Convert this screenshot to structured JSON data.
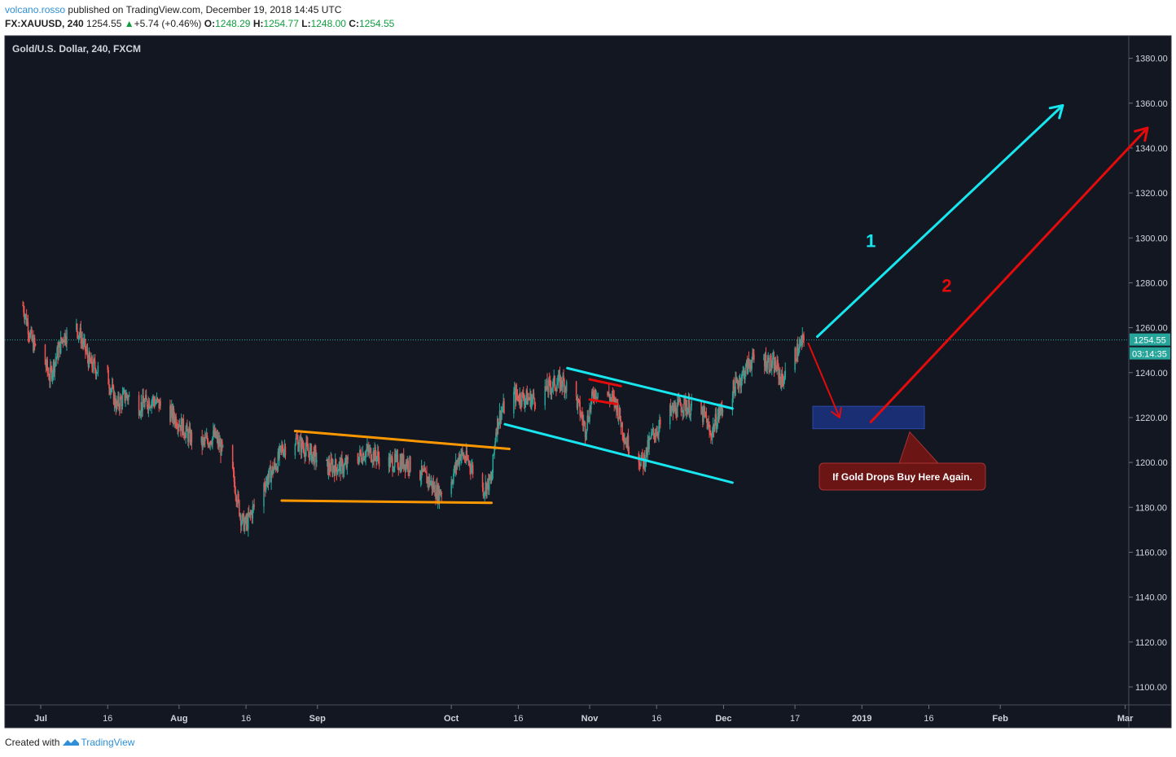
{
  "header": {
    "author": "volcano.rosso",
    "published_text": "published on TradingView.com, December 19, 2018 14:45 UTC",
    "symbol": "FX:XAUUSD, 240",
    "last": "1254.55",
    "change_arrow": "▲",
    "change": "+5.74 (+0.46%)",
    "o_label": "O:",
    "o_val": "1248.29",
    "h_label": "H:",
    "h_val": "1254.77",
    "l_label": "L:",
    "l_val": "1248.00",
    "c_label": "C:",
    "c_val": "1254.55"
  },
  "footer": {
    "created_with": "Created with",
    "brand": "TradingView"
  },
  "colors": {
    "background": "#131722",
    "up_candle": "#26a69a",
    "down_candle": "#ef5350",
    "orange_line": "#ff9800",
    "cyan": "#18e6ef",
    "red": "#e30b0b",
    "zone": "#1c3282",
    "callout": "#6b1515"
  },
  "chart_data": {
    "type": "candlestick",
    "title": "Gold/U.S. Dollar, 240, FXCM",
    "ylim": [
      1092,
      1390
    ],
    "y_ticks": [
      "1100.00",
      "1120.00",
      "1140.00",
      "1160.00",
      "1180.00",
      "1200.00",
      "1220.00",
      "1240.00",
      "1260.00",
      "1280.00",
      "1300.00",
      "1320.00",
      "1340.00",
      "1360.00",
      "1380.00"
    ],
    "x_ticks": [
      "Jul",
      "16",
      "Aug",
      "16",
      "Sep",
      "Oct",
      "16",
      "Nov",
      "16",
      "Dec",
      "17",
      "2019",
      "16",
      "Feb",
      "Mar"
    ],
    "x_tick_dates": [
      "2018-07-01",
      "2018-07-16",
      "2018-08-01",
      "2018-08-16",
      "2018-09-01",
      "2018-10-01",
      "2018-10-16",
      "2018-11-01",
      "2018-11-16",
      "2018-12-01",
      "2018-12-17",
      "2019-01-01",
      "2019-01-16",
      "2019-02-01",
      "2019-03-01"
    ],
    "close_path": [
      {
        "date": "2018-06-27",
        "close": 1270
      },
      {
        "date": "2018-06-29",
        "close": 1254
      },
      {
        "date": "2018-07-02",
        "close": 1244
      },
      {
        "date": "2018-07-03",
        "close": 1238
      },
      {
        "date": "2018-07-06",
        "close": 1256
      },
      {
        "date": "2018-07-09",
        "close": 1260
      },
      {
        "date": "2018-07-10",
        "close": 1256
      },
      {
        "date": "2018-07-12",
        "close": 1244
      },
      {
        "date": "2018-07-16",
        "close": 1238
      },
      {
        "date": "2018-07-18",
        "close": 1225
      },
      {
        "date": "2018-07-20",
        "close": 1230
      },
      {
        "date": "2018-07-23",
        "close": 1225
      },
      {
        "date": "2018-07-26",
        "close": 1228
      },
      {
        "date": "2018-07-30",
        "close": 1222
      },
      {
        "date": "2018-08-01",
        "close": 1218
      },
      {
        "date": "2018-08-03",
        "close": 1212
      },
      {
        "date": "2018-08-06",
        "close": 1208
      },
      {
        "date": "2018-08-09",
        "close": 1212
      },
      {
        "date": "2018-08-13",
        "close": 1195
      },
      {
        "date": "2018-08-15",
        "close": 1174
      },
      {
        "date": "2018-08-16",
        "close": 1172
      },
      {
        "date": "2018-08-20",
        "close": 1190
      },
      {
        "date": "2018-08-23",
        "close": 1200
      },
      {
        "date": "2018-08-24",
        "close": 1206
      },
      {
        "date": "2018-08-27",
        "close": 1210
      },
      {
        "date": "2018-09-03",
        "close": 1198
      },
      {
        "date": "2018-09-07",
        "close": 1198
      },
      {
        "date": "2018-09-12",
        "close": 1205
      },
      {
        "date": "2018-09-17",
        "close": 1200
      },
      {
        "date": "2018-09-21",
        "close": 1200
      },
      {
        "date": "2018-09-26",
        "close": 1192
      },
      {
        "date": "2018-09-28",
        "close": 1186
      },
      {
        "date": "2018-10-01",
        "close": 1192
      },
      {
        "date": "2018-10-03",
        "close": 1204
      },
      {
        "date": "2018-10-05",
        "close": 1200
      },
      {
        "date": "2018-10-08",
        "close": 1188
      },
      {
        "date": "2018-10-10",
        "close": 1192
      },
      {
        "date": "2018-10-11",
        "close": 1215
      },
      {
        "date": "2018-10-12",
        "close": 1222
      },
      {
        "date": "2018-10-15",
        "close": 1230
      },
      {
        "date": "2018-10-19",
        "close": 1228
      },
      {
        "date": "2018-10-24",
        "close": 1235
      },
      {
        "date": "2018-10-26",
        "close": 1236
      },
      {
        "date": "2018-10-29",
        "close": 1228
      },
      {
        "date": "2018-10-31",
        "close": 1215
      },
      {
        "date": "2018-11-02",
        "close": 1232
      },
      {
        "date": "2018-11-05",
        "close": 1230
      },
      {
        "date": "2018-11-07",
        "close": 1226
      },
      {
        "date": "2018-11-09",
        "close": 1210
      },
      {
        "date": "2018-11-12",
        "close": 1202
      },
      {
        "date": "2018-11-13",
        "close": 1200
      },
      {
        "date": "2018-11-15",
        "close": 1212
      },
      {
        "date": "2018-11-19",
        "close": 1222
      },
      {
        "date": "2018-11-22",
        "close": 1226
      },
      {
        "date": "2018-11-27",
        "close": 1220
      },
      {
        "date": "2018-11-28",
        "close": 1212
      },
      {
        "date": "2018-11-30",
        "close": 1222
      },
      {
        "date": "2018-12-03",
        "close": 1232
      },
      {
        "date": "2018-12-05",
        "close": 1238
      },
      {
        "date": "2018-12-07",
        "close": 1245
      },
      {
        "date": "2018-12-10",
        "close": 1246
      },
      {
        "date": "2018-12-13",
        "close": 1242
      },
      {
        "date": "2018-12-14",
        "close": 1236
      },
      {
        "date": "2018-12-17",
        "close": 1248
      },
      {
        "date": "2018-12-19",
        "close": 1254.55
      }
    ],
    "last_price_label": "1254.55",
    "countdown_label": "03:14:35",
    "drawings": {
      "orange_top": [
        {
          "date": "2018-08-27",
          "y": 1214
        },
        {
          "date": "2018-10-14",
          "y": 1206
        }
      ],
      "orange_bottom": [
        {
          "date": "2018-08-24",
          "y": 1183
        },
        {
          "date": "2018-10-10",
          "y": 1182
        }
      ],
      "cyan_top": [
        {
          "date": "2018-10-27",
          "y": 1242
        },
        {
          "date": "2018-12-03",
          "y": 1224
        }
      ],
      "cyan_bottom": [
        {
          "date": "2018-10-13",
          "y": 1217
        },
        {
          "date": "2018-12-03",
          "y": 1191
        }
      ],
      "red_flag_top": [
        {
          "date": "2018-11-01",
          "y": 1237
        },
        {
          "date": "2018-11-08",
          "y": 1234
        }
      ],
      "red_flag_bottom": [
        {
          "date": "2018-11-01",
          "y": 1228
        },
        {
          "date": "2018-11-07",
          "y": 1226
        }
      ],
      "red_down_arrow": [
        {
          "date": "2018-12-20",
          "y": 1253
        },
        {
          "date": "2018-12-27",
          "y": 1220
        }
      ],
      "zone": {
        "date_from": "2018-12-21",
        "date_to": "2019-01-15",
        "y_top": 1225,
        "y_bottom": 1215
      },
      "cyan_arrow": [
        {
          "date": "2018-12-22",
          "y": 1256
        },
        {
          "date": "2019-02-15",
          "y": 1359
        }
      ],
      "red_arrow": [
        {
          "date": "2019-01-03",
          "y": 1218
        },
        {
          "date": "2019-03-06",
          "y": 1349
        }
      ]
    },
    "annotations": {
      "label_1": "1",
      "label_1_pos": {
        "date": "2019-01-03",
        "y": 1296
      },
      "label_2": "2",
      "label_2_pos": {
        "date": "2019-01-20",
        "y": 1276
      },
      "callout": "If Gold Drops Buy Here Again."
    }
  }
}
